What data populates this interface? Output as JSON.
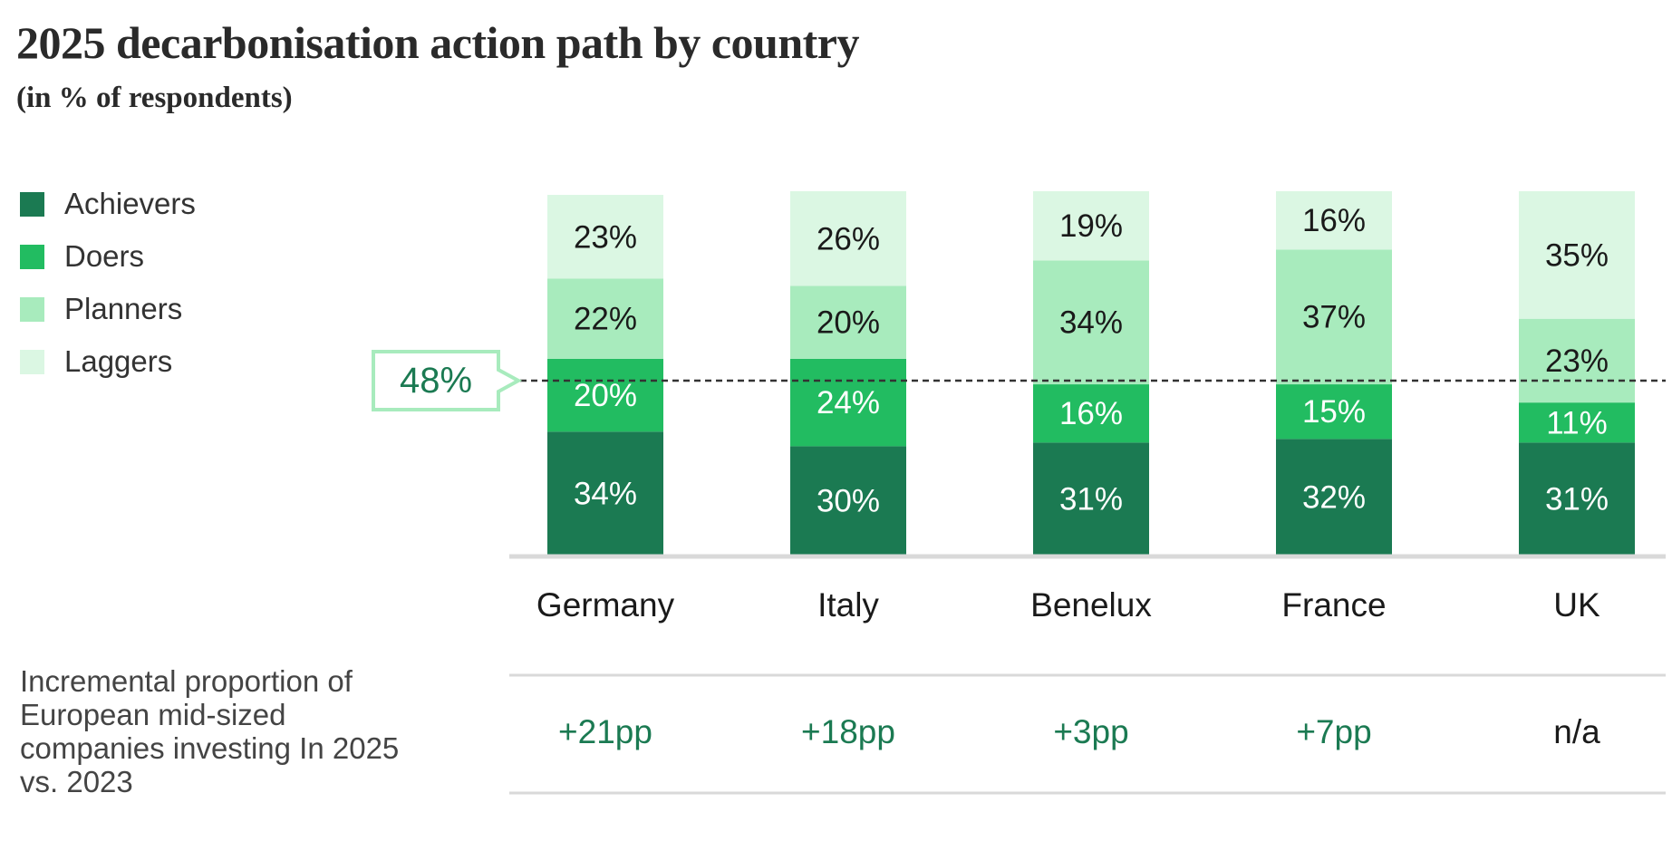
{
  "title": "2025 decarbonisation action path by country",
  "subtitle": "(in % of respondents)",
  "colors": {
    "achievers": "#1b7a52",
    "doers": "#22bc61",
    "planners": "#a8ebbd",
    "laggers": "#dbf7e3",
    "increment_text": "#1b7a52",
    "reference_line": "#333333",
    "callout_border": "#a8ebbd",
    "callout_text": "#1b7a52",
    "divider": "#d9d9d9"
  },
  "chart_data": {
    "type": "bar",
    "stacked": true,
    "categories": [
      "Germany",
      "Italy",
      "Benelux",
      "France",
      "UK"
    ],
    "series": [
      {
        "name": "Achievers",
        "color_key": "achievers",
        "values": [
          34,
          30,
          31,
          32,
          31
        ],
        "labels": [
          "34%",
          "30%",
          "31%",
          "32%",
          "31%"
        ]
      },
      {
        "name": "Doers",
        "color_key": "doers",
        "values": [
          20,
          24,
          16,
          15,
          11
        ],
        "labels": [
          "20%",
          "24%",
          "16%",
          "15%",
          "11%"
        ]
      },
      {
        "name": "Planners",
        "color_key": "planners",
        "values": [
          22,
          20,
          34,
          37,
          23
        ],
        "labels": [
          "22%",
          "20%",
          "34%",
          "37%",
          "23%"
        ]
      },
      {
        "name": "Laggers",
        "color_key": "laggers",
        "values": [
          23,
          26,
          19,
          16,
          35
        ],
        "labels": [
          "23%",
          "26%",
          "19%",
          "16%",
          "35%"
        ]
      }
    ],
    "ylim": [
      0,
      100
    ],
    "reference_line": {
      "value": 48,
      "label": "48%"
    },
    "increment": {
      "label": "Incremental proportion of European mid-sized companies investing In 2025 vs. 2023",
      "values": [
        "+21pp",
        "+18pp",
        "+3pp",
        "+7pp",
        "n/a"
      ]
    },
    "legend_position": "left"
  }
}
